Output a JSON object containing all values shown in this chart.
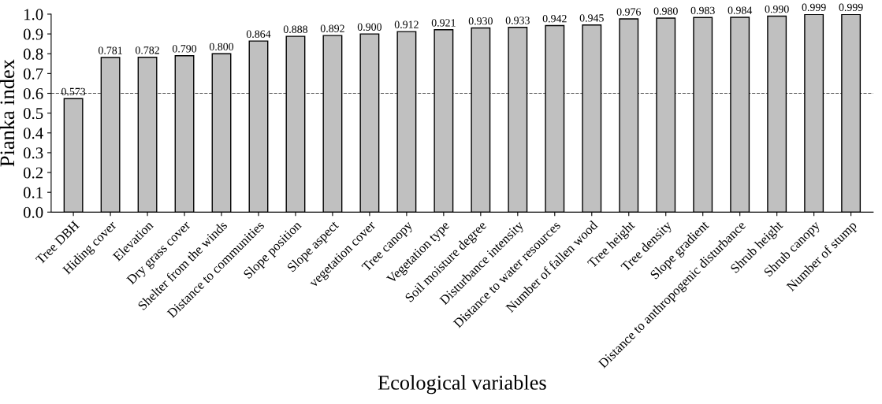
{
  "chart_data": {
    "type": "bar",
    "xlabel": "Ecological variables",
    "ylabel": "Pianka index",
    "categories": [
      "Tree DBH",
      "Hiding cover",
      "Elevation",
      "Dry grass cover",
      "Shelter from the winds",
      "Distance to communities",
      "Slope position",
      "Slope aspect",
      "vegetation cover",
      "Tree canopy",
      "Vegetation type",
      "Soil moisture degree",
      "Disturbance intensity",
      "Distance to water resources",
      "Number of fallen wood",
      "Tree height",
      "Tree density",
      "Slope gradient",
      "Distance to anthropogenic disturbance",
      "Shrub height",
      "Shrub canopy",
      "Number of stump"
    ],
    "values": [
      0.573,
      0.781,
      0.782,
      0.79,
      0.8,
      0.864,
      0.888,
      0.892,
      0.9,
      0.912,
      0.921,
      0.93,
      0.933,
      0.942,
      0.945,
      0.976,
      0.98,
      0.983,
      0.984,
      0.99,
      0.999,
      0.999
    ],
    "value_labels": [
      "0.573",
      "0.781",
      "0.782",
      "0.790",
      "0.800",
      "0.864",
      "0.888",
      "0.892",
      "0.900",
      "0.912",
      "0.921",
      "0.930",
      "0.933",
      "0.942",
      "0.945",
      "0.976",
      "0.980",
      "0.983",
      "0.984",
      "0.990",
      "0.999",
      "0.999"
    ],
    "color": "#c0c0c0",
    "ylim": [
      0,
      1.0
    ],
    "yticks": [
      {
        "value": 0,
        "label": "0.0"
      },
      {
        "value": 0.1,
        "label": "0.1"
      },
      {
        "value": 0.2,
        "label": "0.2"
      },
      {
        "value": 0.3,
        "label": "0.3"
      },
      {
        "value": 0.4,
        "label": "0.4"
      },
      {
        "value": 0.5,
        "label": "0.5"
      },
      {
        "value": 0.6,
        "label": "0.6"
      },
      {
        "value": 0.7,
        "label": "0.7"
      },
      {
        "value": 0.8,
        "label": "0.8"
      },
      {
        "value": 0.9,
        "label": "0.9"
      },
      {
        "value": 1.0,
        "label": "1.0"
      }
    ],
    "ref_lines": [
      {
        "axis": "y",
        "value": 0.6,
        "color": "#555555",
        "line_style": "dashed"
      }
    ],
    "grid": false,
    "legend": false
  }
}
